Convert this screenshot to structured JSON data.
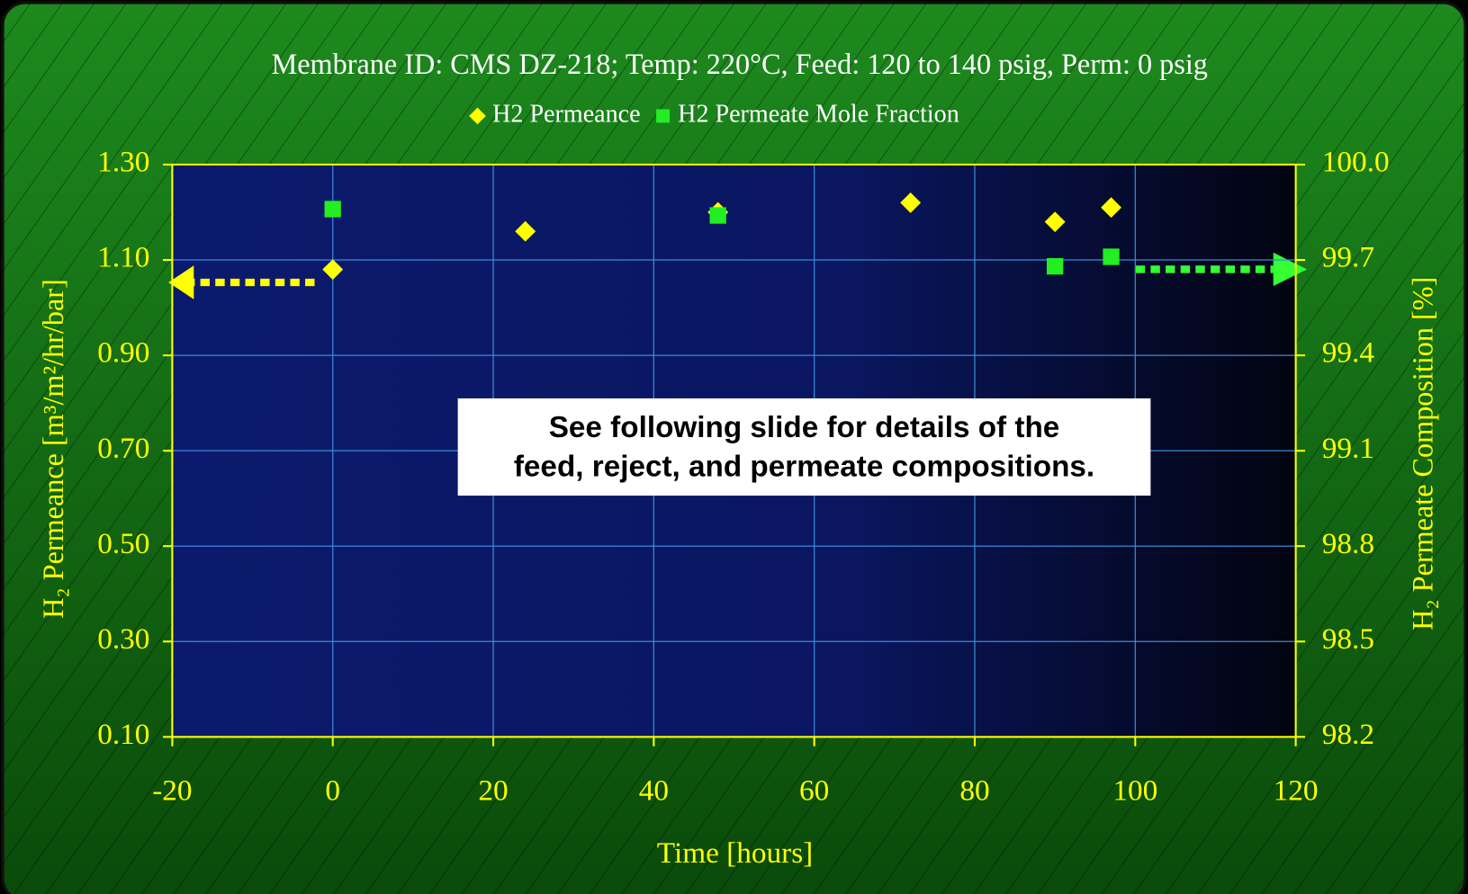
{
  "chart_data": {
    "type": "scatter",
    "title": "Membrane ID:  CMS DZ-218;   Temp: 220°C, Feed: 120 to 140 psig, Perm: 0 psig",
    "x_label": "Time [hours]",
    "y_label": "H₂ Permeance [m³/m²/hr/bar]",
    "y2_label": "H₂ Permeate Composition [%]",
    "annotation": [
      "See following slide for details of the",
      "feed, reject, and permeate compositions."
    ],
    "xlim": [
      -20,
      120
    ],
    "xticks": [
      -20,
      0,
      20,
      40,
      60,
      80,
      100,
      120
    ],
    "ylim": [
      0.1,
      1.3
    ],
    "yticks": [
      {
        "value": 0.1,
        "label": "0.10"
      },
      {
        "value": 0.3,
        "label": "0.30"
      },
      {
        "value": 0.5,
        "label": "0.50"
      },
      {
        "value": 0.7,
        "label": "0.70"
      },
      {
        "value": 0.9,
        "label": "0.90"
      },
      {
        "value": 1.1,
        "label": "1.10"
      },
      {
        "value": 1.3,
        "label": "1.30"
      }
    ],
    "y2lim": [
      98.2,
      100.0
    ],
    "y2ticks": [
      {
        "value": 98.2,
        "label": "98.2"
      },
      {
        "value": 98.5,
        "label": "98.5"
      },
      {
        "value": 98.8,
        "label": "98.8"
      },
      {
        "value": 99.1,
        "label": "99.1"
      },
      {
        "value": 99.4,
        "label": "99.4"
      },
      {
        "value": 99.7,
        "label": "99.7"
      },
      {
        "value": 100.0,
        "label": "100.0"
      }
    ],
    "grid": true,
    "series": [
      {
        "name": "H2 Permeance",
        "color": "#ffff00",
        "marker": "diamond",
        "x": [
          0,
          24,
          48,
          72,
          90,
          97
        ],
        "values": [
          1.08,
          1.16,
          1.2,
          1.22,
          1.18,
          1.21
        ]
      },
      {
        "name": "H2 Permeate Mole Fraction",
        "color": "#22ee22",
        "marker": "square",
        "axis": "y2",
        "x": [
          0,
          48,
          90,
          97
        ],
        "values": [
          99.86,
          99.84,
          99.68,
          99.71
        ]
      }
    ]
  }
}
